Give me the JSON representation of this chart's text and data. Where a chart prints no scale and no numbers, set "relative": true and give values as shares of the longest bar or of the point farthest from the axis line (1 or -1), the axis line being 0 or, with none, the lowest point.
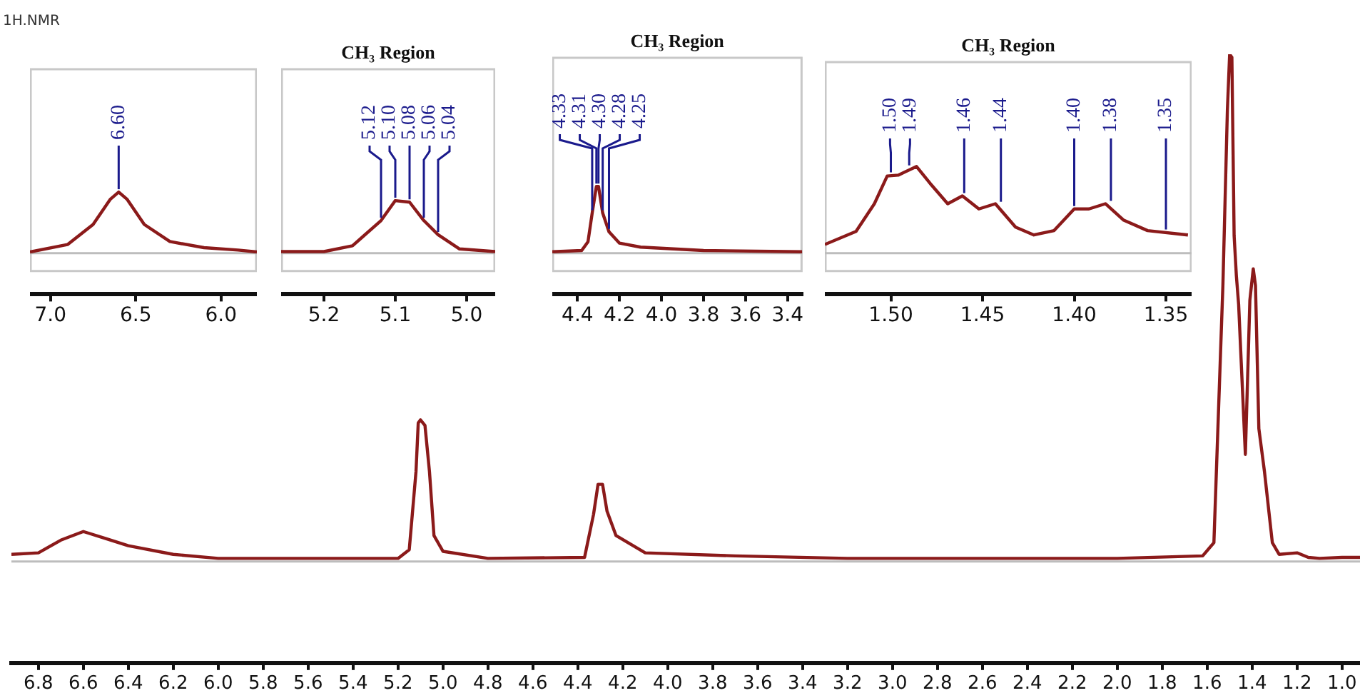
{
  "chart_data": [
    {
      "type": "line",
      "title": "1H.NMR",
      "relative": true,
      "tick_labels": "x",
      "xlim": [
        6.92,
        0.92
      ],
      "xticks": [
        {
          "value": 6.8,
          "label": "6.8"
        },
        {
          "value": 6.6,
          "label": "6.6"
        },
        {
          "value": 6.4,
          "label": "6.4"
        },
        {
          "value": 6.2,
          "label": "6.2"
        },
        {
          "value": 6.0,
          "label": "6.0"
        },
        {
          "value": 5.8,
          "label": "5.8"
        },
        {
          "value": 5.6,
          "label": "5.6"
        },
        {
          "value": 5.4,
          "label": "5.4"
        },
        {
          "value": 5.2,
          "label": "5.2"
        },
        {
          "value": 5.0,
          "label": "5.0"
        },
        {
          "value": 4.8,
          "label": "4.8"
        },
        {
          "value": 4.6,
          "label": "4.6"
        },
        {
          "value": 4.4,
          "label": "4.4"
        },
        {
          "value": 4.2,
          "label": "4.2"
        },
        {
          "value": 4.0,
          "label": "4.0"
        },
        {
          "value": 3.8,
          "label": "3.8"
        },
        {
          "value": 3.6,
          "label": "3.6"
        },
        {
          "value": 3.4,
          "label": "3.4"
        },
        {
          "value": 3.2,
          "label": "3.2"
        },
        {
          "value": 3.0,
          "label": "3.0"
        },
        {
          "value": 2.8,
          "label": "2.8"
        },
        {
          "value": 2.6,
          "label": "2.6"
        },
        {
          "value": 2.4,
          "label": "2.4"
        },
        {
          "value": 2.2,
          "label": "2.2"
        },
        {
          "value": 2.0,
          "label": "2.0"
        },
        {
          "value": 1.8,
          "label": "1.8"
        },
        {
          "value": 1.6,
          "label": "1.6"
        },
        {
          "value": 1.4,
          "label": "1.4"
        },
        {
          "value": 1.2,
          "label": "1.2"
        },
        {
          "value": 1.0,
          "label": "1.0"
        }
      ],
      "x": [
        6.92,
        6.8,
        6.7,
        6.6,
        6.5,
        6.4,
        6.2,
        6.0,
        5.6,
        5.2,
        5.15,
        5.12,
        5.11,
        5.1,
        5.08,
        5.06,
        5.04,
        5.0,
        4.8,
        4.37,
        4.33,
        4.31,
        4.29,
        4.27,
        4.23,
        4.1,
        3.7,
        3.2,
        2.0,
        1.62,
        1.57,
        1.53,
        1.51,
        1.5,
        1.49,
        1.48,
        1.47,
        1.46,
        1.43,
        1.41,
        1.395,
        1.385,
        1.37,
        1.345,
        1.31,
        1.28,
        1.2,
        1.15,
        1.1,
        1.0,
        0.92
      ],
      "series": [
        {
          "color": "#8b1a1a",
          "values": [
            0.014,
            0.017,
            0.042,
            0.059,
            0.045,
            0.031,
            0.014,
            0.006,
            0.006,
            0.006,
            0.023,
            0.177,
            0.273,
            0.279,
            0.268,
            0.177,
            0.051,
            0.02,
            0.006,
            0.008,
            0.093,
            0.152,
            0.152,
            0.099,
            0.051,
            0.017,
            0.011,
            0.006,
            0.006,
            0.011,
            0.037,
            0.544,
            0.89,
            1.0,
            0.994,
            0.642,
            0.563,
            0.507,
            0.211,
            0.515,
            0.577,
            0.544,
            0.262,
            0.177,
            0.037,
            0.014,
            0.017,
            0.008,
            0.006,
            0.008,
            0.008
          ]
        }
      ],
      "ref_lines": [
        {
          "axis": "y",
          "value": 0,
          "color": "#bdbdbd"
        }
      ]
    },
    {
      "type": "line",
      "relative": true,
      "tick_labels": "x",
      "xlim": [
        7.12,
        5.79
      ],
      "xticks": [
        {
          "value": 7.0,
          "label": "7.0"
        },
        {
          "value": 6.5,
          "label": "6.5"
        },
        {
          "value": 6.0,
          "label": "6.0"
        }
      ],
      "x": [
        7.12,
        6.9,
        6.75,
        6.65,
        6.6,
        6.55,
        6.45,
        6.3,
        6.1,
        5.9,
        5.79
      ],
      "series": [
        {
          "color": "#8b1a1a",
          "values": [
            0.02,
            0.14,
            0.47,
            0.88,
            1,
            0.88,
            0.47,
            0.19,
            0.09,
            0.05,
            0.02
          ]
        }
      ],
      "annotations": [
        {
          "text": "6.60",
          "x": 6.6,
          "y": 1
        }
      ],
      "ref_lines": [
        {
          "axis": "y",
          "value": 0,
          "color": "#bdbdbd"
        }
      ]
    },
    {
      "type": "line",
      "title": "CH₃ Region",
      "relative": true,
      "tick_labels": "x",
      "xlim": [
        5.26,
        4.96
      ],
      "xticks": [
        {
          "value": 5.2,
          "label": "5.2"
        },
        {
          "value": 5.1,
          "label": "5.1"
        },
        {
          "value": 5.0,
          "label": "5.0"
        }
      ],
      "x": [
        5.26,
        5.2,
        5.16,
        5.12,
        5.1,
        5.08,
        5.06,
        5.04,
        5.01,
        4.96
      ],
      "series": [
        {
          "color": "#8b1a1a",
          "values": [
            0.03,
            0.03,
            0.14,
            0.62,
            1,
            0.97,
            0.62,
            0.35,
            0.08,
            0.03
          ]
        }
      ],
      "annotations": [
        {
          "text": "5.12",
          "x": 5.12,
          "y": 0.62
        },
        {
          "text": "5.10",
          "x": 5.1,
          "y": 1
        },
        {
          "text": "5.08",
          "x": 5.08,
          "y": 0.97
        },
        {
          "text": "5.06",
          "x": 5.06,
          "y": 0.62
        },
        {
          "text": "5.04",
          "x": 5.04,
          "y": 0.35
        }
      ],
      "ref_lines": [
        {
          "axis": "y",
          "value": 0,
          "color": "#bdbdbd"
        }
      ]
    },
    {
      "type": "line",
      "title": "CH₃ Region",
      "relative": true,
      "tick_labels": "x",
      "xlim": [
        4.52,
        3.33
      ],
      "xticks": [
        {
          "value": 4.4,
          "label": "4.4"
        },
        {
          "value": 4.2,
          "label": "4.2"
        },
        {
          "value": 4.0,
          "label": "4.0"
        },
        {
          "value": 3.8,
          "label": "3.8"
        },
        {
          "value": 3.6,
          "label": "3.6"
        },
        {
          "value": 3.4,
          "label": "3.4"
        }
      ],
      "x": [
        4.52,
        4.38,
        4.35,
        4.33,
        4.31,
        4.3,
        4.28,
        4.25,
        4.2,
        4.1,
        3.8,
        3.33
      ],
      "series": [
        {
          "color": "#8b1a1a",
          "values": [
            0.02,
            0.04,
            0.17,
            0.6,
            1,
            1,
            0.6,
            0.32,
            0.15,
            0.09,
            0.04,
            0.02
          ]
        }
      ],
      "annotations": [
        {
          "text": "4.33",
          "x": 4.33,
          "y": 0.6
        },
        {
          "text": "4.31",
          "x": 4.31,
          "y": 1
        },
        {
          "text": "4.30",
          "x": 4.3,
          "y": 1
        },
        {
          "text": "4.28",
          "x": 4.28,
          "y": 0.6
        },
        {
          "text": "4.25",
          "x": 4.25,
          "y": 0.32
        }
      ],
      "ref_lines": [
        {
          "axis": "y",
          "value": 0,
          "color": "#bdbdbd"
        }
      ]
    },
    {
      "type": "line",
      "title": "CH₃ Region",
      "relative": true,
      "tick_labels": "x",
      "xlim": [
        1.536,
        1.336
      ],
      "xticks": [
        {
          "value": 1.5,
          "label": "1.50"
        },
        {
          "value": 1.45,
          "label": "1.45"
        },
        {
          "value": 1.4,
          "label": "1.40"
        },
        {
          "value": 1.35,
          "label": "1.35"
        }
      ],
      "x": [
        1.536,
        1.519,
        1.509,
        1.502,
        1.496,
        1.486,
        1.478,
        1.469,
        1.461,
        1.452,
        1.443,
        1.432,
        1.422,
        1.411,
        1.4,
        1.392,
        1.383,
        1.373,
        1.36,
        1.338
      ],
      "series": [
        {
          "color": "#8b1a1a",
          "values": [
            0.1,
            0.25,
            0.57,
            0.89,
            0.9,
            1,
            0.79,
            0.57,
            0.66,
            0.51,
            0.57,
            0.3,
            0.21,
            0.26,
            0.51,
            0.51,
            0.57,
            0.38,
            0.26,
            0.21
          ]
        }
      ],
      "annotations": [
        {
          "text": "1.50",
          "x": 1.5,
          "y": 0.9
        },
        {
          "text": "1.49",
          "x": 1.49,
          "y": 0.98
        },
        {
          "text": "1.46",
          "x": 1.46,
          "y": 0.66
        },
        {
          "text": "1.44",
          "x": 1.44,
          "y": 0.56
        },
        {
          "text": "1.40",
          "x": 1.4,
          "y": 0.51
        },
        {
          "text": "1.38",
          "x": 1.38,
          "y": 0.57
        },
        {
          "text": "1.35",
          "x": 1.35,
          "y": 0.24
        }
      ],
      "ref_lines": [
        {
          "axis": "y",
          "value": 0,
          "color": "#bdbdbd"
        }
      ]
    }
  ]
}
